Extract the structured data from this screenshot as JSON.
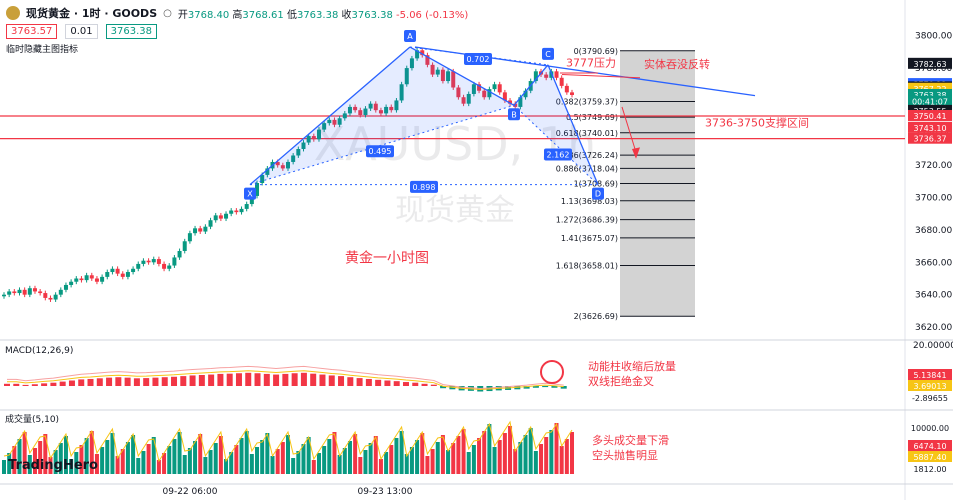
{
  "header": {
    "symbol": "现货黄金 · 1时 · GOODS",
    "open_label": "开",
    "open": "3768.40",
    "high_label": "高",
    "high": "3768.61",
    "low_label": "低",
    "low": "3763.38",
    "close_label": "收",
    "close": "3763.38",
    "change": "-5.06 (-0.13%)"
  },
  "order": {
    "sell": "3763.57",
    "qty": "0.01",
    "buy": "3763.38"
  },
  "hint": "临时隐藏主图指标",
  "watermark": {
    "line1": "XAUUSD, 1h",
    "line2": "现货黄金"
  },
  "logo": "TradingHero",
  "annotations": {
    "resistance": "3777压力",
    "reversal": "实体吞没反转",
    "support_zone": "3736-3750支撑区间",
    "title_cn": "黄金一小时图",
    "macd_note1": "动能柱收缩后放量",
    "macd_note2": "双线拒绝金叉",
    "vol_note1": "多头成交量下滑",
    "vol_note2": "空头抛售明显"
  },
  "colors": {
    "up": "#089981",
    "down": "#f23645",
    "pattern": "#2962ff",
    "annot": "#f23645"
  },
  "chart_data": [
    {
      "type": "candlestick",
      "title": "XAUUSD 1h",
      "x_ticks": [
        "09-22 06:00",
        "09-23 13:00"
      ],
      "ylim": [
        3612,
        3806
      ],
      "y_ticks": [
        3620,
        3640,
        3660,
        3680,
        3700,
        3720,
        3740,
        3760,
        3780,
        3800
      ],
      "closes": [
        3640,
        3642,
        3641,
        3643,
        3640,
        3644,
        3642,
        3641,
        3638,
        3637,
        3640,
        3643,
        3646,
        3648,
        3650,
        3649,
        3652,
        3650,
        3648,
        3651,
        3654,
        3656,
        3653,
        3651,
        3654,
        3656,
        3659,
        3661,
        3660,
        3662,
        3659,
        3656,
        3658,
        3663,
        3667,
        3673,
        3678,
        3681,
        3679,
        3682,
        3686,
        3689,
        3687,
        3690,
        3692,
        3691,
        3693,
        3696,
        3701,
        3709,
        3714,
        3718,
        3722,
        3720,
        3718,
        3722,
        3726,
        3730,
        3734,
        3738,
        3736,
        3742,
        3746,
        3748,
        3745,
        3749,
        3752,
        3756,
        3754,
        3751,
        3755,
        3758,
        3754,
        3752,
        3756,
        3754,
        3760,
        3770,
        3780,
        3786,
        3791,
        3788,
        3782,
        3776,
        3779,
        3772,
        3778,
        3768,
        3762,
        3758,
        3764,
        3770,
        3766,
        3762,
        3767,
        3770,
        3765,
        3760,
        3758,
        3756,
        3762,
        3766,
        3772,
        3778,
        3776,
        3774,
        3778,
        3774,
        3769,
        3765,
        3763.38
      ],
      "fib_levels": [
        {
          "ratio": "0",
          "price": 3790.69
        },
        {
          "ratio": "0.382",
          "price": 3759.37
        },
        {
          "ratio": "0.5",
          "price": 3749.69
        },
        {
          "ratio": "0.618",
          "price": 3740.01
        },
        {
          "ratio": "0.786",
          "price": 3726.24
        },
        {
          "ratio": "0.886",
          "price": 3718.04
        },
        {
          "ratio": "1",
          "price": 3708.69
        },
        {
          "ratio": "1.13",
          "price": 3698.03
        },
        {
          "ratio": "1.272",
          "price": 3686.39
        },
        {
          "ratio": "1.41",
          "price": 3675.07
        },
        {
          "ratio": "1.618",
          "price": 3658.01
        },
        {
          "ratio": "2",
          "price": 3626.69
        }
      ],
      "harmonic_points": [
        {
          "label": "X",
          "price": 3708
        },
        {
          "label": "A",
          "price": 3793
        },
        {
          "label": "B",
          "price": 3757
        },
        {
          "label": "C",
          "price": 3782
        },
        {
          "label": "D",
          "price": 3708
        }
      ],
      "harmonic_ratios": [
        "0.702",
        "0.495",
        "0.898",
        "2.162"
      ],
      "support_lines": [
        3750.4,
        3736.4
      ],
      "price_tags": [
        {
          "price": "3782.63",
          "color": "#131722"
        },
        {
          "price": "3770.11",
          "color": "#2962ff"
        },
        {
          "price": "3768.09",
          "color": "#131722"
        },
        {
          "price": "3767.22",
          "color": "#f7c515"
        },
        {
          "price": "3763.38",
          "color": "#089981"
        },
        {
          "price": "00:41:07",
          "color": "#089981"
        },
        {
          "price": "3753.55",
          "color": "#131722"
        },
        {
          "price": "3750.41",
          "color": "#f23645"
        },
        {
          "price": "3743.10",
          "color": "#f23645"
        },
        {
          "price": "3736.37",
          "color": "#f23645"
        }
      ]
    },
    {
      "type": "bar",
      "title": "MACD(12,26,9)",
      "ylim": [
        -4,
        20
      ],
      "y_ticks": [
        "20.00000"
      ],
      "tags": [
        {
          "v": "5.13841",
          "color": "#f23645"
        },
        {
          "v": "3.69013",
          "color": "#f7c515"
        },
        {
          "v": "-2.89655",
          "color": "#131722"
        }
      ],
      "histogram": [
        1,
        1,
        0.5,
        0.8,
        1.2,
        1.5,
        2,
        2.5,
        3,
        3.2,
        3.5,
        3.8,
        4,
        3.8,
        3.5,
        3.6,
        3.8,
        4,
        4.2,
        4.5,
        4.8,
        5,
        5.2,
        5.5,
        5.6,
        5.8,
        6,
        5.8,
        5.5,
        5.2,
        5.5,
        5.8,
        6,
        5.6,
        5.2,
        4.8,
        4.5,
        4,
        3.6,
        3.2,
        2.8,
        2.5,
        2.2,
        1.8,
        1.5,
        1,
        0.6,
        -1,
        -1.5,
        -2,
        -2.2,
        -2.5,
        -2.3,
        -2,
        -1.8,
        -1.5,
        -1.2,
        -0.8,
        -0.5,
        -0.8,
        -1.2
      ]
    },
    {
      "type": "bar",
      "title": "成交量(5,10)",
      "ylim": [
        0,
        11500
      ],
      "tags": [
        {
          "v": "10000.00",
          "color": "#131722"
        },
        {
          "v": "6474.10",
          "color": "#f23645"
        },
        {
          "v": "5887.40",
          "color": "#f7c515"
        },
        {
          "v": "1812.00",
          "color": "#131722"
        }
      ],
      "y_ticks": [
        "10000.00",
        "1812.00"
      ]
    }
  ]
}
